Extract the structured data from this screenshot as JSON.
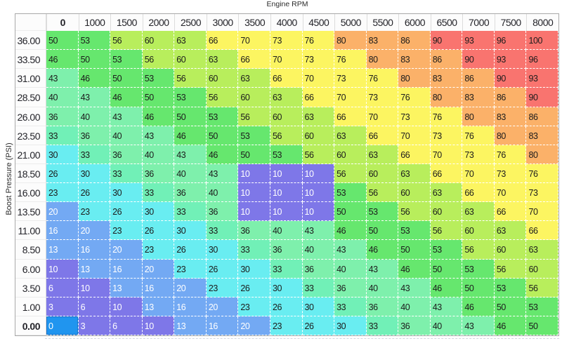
{
  "axes": {
    "x_title": "Engine RPM",
    "y_title": "Boost Pressure (PSI)"
  },
  "table": {
    "col_headers": [
      "0",
      "1000",
      "1500",
      "2000",
      "2500",
      "3000",
      "3500",
      "4000",
      "4500",
      "5000",
      "5500",
      "6000",
      "6500",
      "7000",
      "7500",
      "8000"
    ],
    "row_headers": [
      "36.00",
      "33.50",
      "31.00",
      "28.50",
      "26.00",
      "23.50",
      "21.00",
      "18.50",
      "16.00",
      "13.50",
      "11.00",
      "8.50",
      "6.00",
      "3.50",
      "1.00",
      "0.00"
    ],
    "values": [
      [
        50,
        53,
        56,
        60,
        63,
        66,
        70,
        73,
        76,
        80,
        83,
        86,
        90,
        93,
        96,
        100
      ],
      [
        46,
        50,
        53,
        56,
        60,
        63,
        66,
        70,
        73,
        76,
        80,
        83,
        86,
        90,
        93,
        96
      ],
      [
        43,
        46,
        50,
        53,
        56,
        60,
        63,
        66,
        70,
        73,
        76,
        80,
        83,
        86,
        90,
        93
      ],
      [
        40,
        43,
        46,
        50,
        53,
        56,
        60,
        63,
        66,
        70,
        73,
        76,
        80,
        83,
        86,
        90
      ],
      [
        36,
        40,
        43,
        46,
        50,
        53,
        56,
        60,
        63,
        66,
        70,
        73,
        76,
        80,
        83,
        86
      ],
      [
        33,
        36,
        40,
        43,
        46,
        50,
        53,
        56,
        60,
        63,
        66,
        70,
        73,
        76,
        80,
        83
      ],
      [
        30,
        33,
        36,
        40,
        43,
        46,
        50,
        53,
        56,
        60,
        63,
        66,
        70,
        73,
        76,
        80
      ],
      [
        26,
        30,
        33,
        36,
        40,
        43,
        10,
        10,
        10,
        56,
        60,
        63,
        66,
        70,
        73,
        76
      ],
      [
        23,
        26,
        30,
        33,
        36,
        40,
        10,
        10,
        10,
        53,
        56,
        60,
        63,
        66,
        70,
        73
      ],
      [
        20,
        23,
        26,
        30,
        33,
        36,
        10,
        10,
        10,
        50,
        53,
        56,
        60,
        63,
        66,
        70
      ],
      [
        16,
        20,
        23,
        26,
        30,
        33,
        36,
        40,
        43,
        46,
        50,
        53,
        56,
        60,
        63,
        66
      ],
      [
        13,
        16,
        20,
        23,
        26,
        30,
        33,
        36,
        40,
        43,
        46,
        50,
        53,
        56,
        60,
        63
      ],
      [
        10,
        13,
        16,
        20,
        23,
        26,
        30,
        33,
        36,
        40,
        43,
        46,
        50,
        53,
        56,
        60
      ],
      [
        6,
        10,
        13,
        16,
        20,
        23,
        26,
        30,
        33,
        36,
        40,
        43,
        46,
        50,
        53,
        56
      ],
      [
        3,
        6,
        10,
        13,
        16,
        20,
        23,
        26,
        30,
        33,
        36,
        40,
        43,
        46,
        50,
        53
      ],
      [
        0,
        3,
        6,
        10,
        13,
        16,
        20,
        23,
        26,
        30,
        33,
        36,
        40,
        43,
        46,
        50
      ]
    ],
    "selected": {
      "row": 15,
      "col": 0
    }
  },
  "colors": {
    "selected_cell_bg": "#2095ef",
    "value_bands": [
      {
        "max": 2,
        "color": "#2095ef",
        "text": "light"
      },
      {
        "max": 11,
        "color": "#7e77e8",
        "text": "light"
      },
      {
        "max": 21,
        "color": "#73a9f3",
        "text": "light"
      },
      {
        "max": 31,
        "color": "#69edf1",
        "text": "dark"
      },
      {
        "max": 34,
        "color": "#71f0b7",
        "text": "dark"
      },
      {
        "max": 44,
        "color": "#7ef0ac",
        "text": "dark"
      },
      {
        "max": 54,
        "color": "#66e76e",
        "text": "dark"
      },
      {
        "max": 64,
        "color": "#b8ee5c",
        "text": "dark"
      },
      {
        "max": 77,
        "color": "#fcf561",
        "text": "dark"
      },
      {
        "max": 87,
        "color": "#fbb169",
        "text": "dark"
      },
      {
        "max": 1000,
        "color": "#f9746f",
        "text": "dark"
      }
    ]
  }
}
